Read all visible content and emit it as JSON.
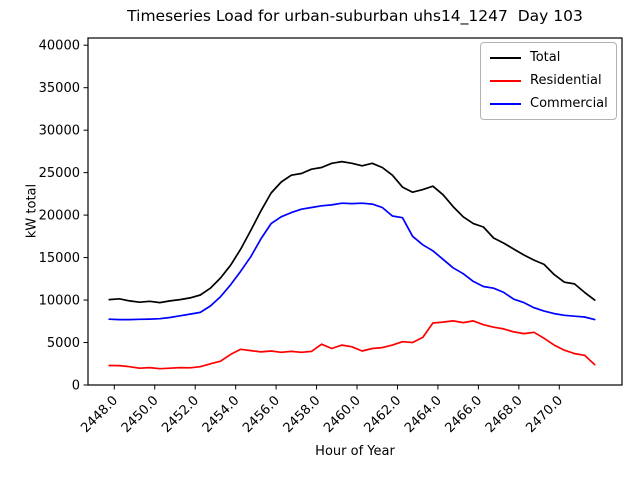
{
  "chart_data": {
    "type": "line",
    "title": "Timeseries Load for urban-suburban uhs14_1247  Day 103",
    "xlabel": "Hour of Year",
    "ylabel": "kW total",
    "background_color": "#ffffff",
    "grid": false,
    "xlim": [
      2446.7,
      2473.1
    ],
    "ylim": [
      0,
      40850
    ],
    "x_ticks": [
      2448,
      2450,
      2452,
      2454,
      2456,
      2458,
      2460,
      2462,
      2464,
      2466,
      2468,
      2470
    ],
    "x_tick_labels": [
      "2448.0",
      "2450.0",
      "2452.0",
      "2454.0",
      "2456.0",
      "2458.0",
      "2460.0",
      "2462.0",
      "2464.0",
      "2466.0",
      "2468.0",
      "2470.0"
    ],
    "y_ticks": [
      0,
      5000,
      10000,
      15000,
      20000,
      25000,
      30000,
      35000,
      40000
    ],
    "y_tick_labels": [
      "0",
      "5000",
      "10000",
      "15000",
      "20000",
      "25000",
      "30000",
      "35000",
      "40000"
    ],
    "legend": {
      "position": "upper right",
      "entries": [
        {
          "label": "Total",
          "color": "#000000"
        },
        {
          "label": "Residential",
          "color": "#ff0000"
        },
        {
          "label": "Commercial",
          "color": "#0000ff"
        }
      ]
    },
    "x": [
      2447.75,
      2448.25,
      2448.75,
      2449.25,
      2449.75,
      2450.25,
      2450.75,
      2451.25,
      2451.75,
      2452.25,
      2452.75,
      2453.25,
      2453.75,
      2454.25,
      2454.75,
      2455.25,
      2455.75,
      2456.25,
      2456.75,
      2457.25,
      2457.75,
      2458.25,
      2458.75,
      2459.25,
      2459.75,
      2460.25,
      2460.75,
      2461.25,
      2461.75,
      2462.25,
      2462.75,
      2463.25,
      2463.75,
      2464.25,
      2464.75,
      2465.25,
      2465.75,
      2466.25,
      2466.75,
      2467.25,
      2467.75,
      2468.25,
      2468.75,
      2469.25,
      2469.75,
      2470.25,
      2470.75,
      2471.25,
      2471.75
    ],
    "series": [
      {
        "name": "Total",
        "color": "#000000",
        "values": [
          10050,
          10150,
          9900,
          9750,
          9850,
          9700,
          9900,
          10050,
          10250,
          10600,
          11400,
          12600,
          14100,
          16000,
          18200,
          20500,
          22600,
          23900,
          24700,
          24900,
          25400,
          25600,
          26100,
          26300,
          26100,
          25800,
          26100,
          25600,
          24700,
          23300,
          22700,
          23000,
          23400,
          22400,
          21000,
          19800,
          19000,
          18600,
          17300,
          16700,
          16000,
          15300,
          14700,
          14200,
          13000,
          12100,
          11900,
          10900,
          10000
        ]
      },
      {
        "name": "Residential",
        "color": "#ff0000",
        "values": [
          2300,
          2280,
          2150,
          1980,
          2050,
          1920,
          1980,
          2050,
          2020,
          2150,
          2500,
          2800,
          3600,
          4200,
          4050,
          3900,
          4000,
          3850,
          3950,
          3850,
          3950,
          4800,
          4300,
          4700,
          4500,
          4000,
          4300,
          4400,
          4700,
          5100,
          5000,
          5600,
          7300,
          7400,
          7550,
          7350,
          7550,
          7100,
          6800,
          6600,
          6250,
          6050,
          6200,
          5500,
          4700,
          4100,
          3700,
          3500,
          2400
        ]
      },
      {
        "name": "Commercial",
        "color": "#0000ff",
        "values": [
          7750,
          7700,
          7700,
          7730,
          7760,
          7800,
          7950,
          8150,
          8350,
          8550,
          9300,
          10400,
          11800,
          13400,
          15100,
          17200,
          19000,
          19800,
          20300,
          20700,
          20900,
          21100,
          21200,
          21400,
          21350,
          21400,
          21300,
          20900,
          19900,
          19700,
          17500,
          16500,
          15800,
          14800,
          13800,
          13100,
          12200,
          11600,
          11400,
          10900,
          10100,
          9700,
          9100,
          8700,
          8400,
          8200,
          8100,
          8000,
          7700
        ]
      }
    ]
  }
}
